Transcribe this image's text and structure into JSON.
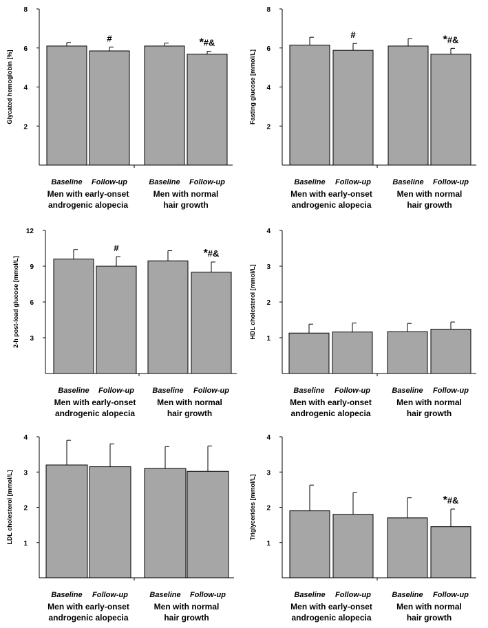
{
  "chart_data": [
    {
      "type": "bar",
      "ylabel": "Glycated hemoglobin [%]",
      "ylim": [
        0,
        8
      ],
      "yticks": [
        2,
        4,
        6,
        8
      ],
      "categories": [
        "Baseline",
        "Follow-up",
        "Baseline",
        "Follow-up"
      ],
      "groups": [
        "Men with early-onset|androgenic alopecia",
        "Men with normal|hair growth"
      ],
      "values": [
        6.1,
        5.85,
        6.1,
        5.68
      ],
      "errors": [
        0.18,
        0.2,
        0.15,
        0.15
      ],
      "annotations": [
        {
          "index": 1,
          "star": "",
          "mark": "#"
        },
        {
          "index": 3,
          "star": "*",
          "mark": "#&"
        }
      ]
    },
    {
      "type": "bar",
      "ylabel": "Fasting glucose [mmol/L]",
      "ylim": [
        0,
        8
      ],
      "yticks": [
        2,
        4,
        6,
        8
      ],
      "categories": [
        "Baseline",
        "Follow-up",
        "Baseline",
        "Follow-up"
      ],
      "groups": [
        "Men with early-onset|androgenic alopecia",
        "Men with normal|hair growth"
      ],
      "values": [
        6.15,
        5.88,
        6.1,
        5.68
      ],
      "errors": [
        0.4,
        0.35,
        0.38,
        0.3
      ],
      "annotations": [
        {
          "index": 1,
          "star": "",
          "mark": "#"
        },
        {
          "index": 3,
          "star": "*",
          "mark": "#&"
        }
      ]
    },
    {
      "type": "bar",
      "ylabel": "2-h post-load glucose [mmol/L]",
      "ylim": [
        0,
        12
      ],
      "yticks": [
        3,
        6,
        9,
        12
      ],
      "categories": [
        "Baseline",
        "Follow-up",
        "Baseline",
        "Follow-up"
      ],
      "groups": [
        "Men with early-onset|androgenic alopecia",
        "Men with normal|hair growth"
      ],
      "values": [
        9.6,
        9.0,
        9.45,
        8.5
      ],
      "errors": [
        0.8,
        0.8,
        0.85,
        0.85
      ],
      "annotations": [
        {
          "index": 1,
          "star": "",
          "mark": "#"
        },
        {
          "index": 3,
          "star": "*",
          "mark": "#&"
        }
      ]
    },
    {
      "type": "bar",
      "ylabel": "HDL cholesterol [mmol/L]",
      "ylim": [
        0,
        4
      ],
      "yticks": [
        1,
        2,
        3,
        4
      ],
      "categories": [
        "Baseline",
        "Follow-up",
        "Baseline",
        "Follow-up"
      ],
      "groups": [
        "Men with early-onset|androgenic alopecia",
        "Men with normal|hair growth"
      ],
      "values": [
        1.13,
        1.16,
        1.17,
        1.24
      ],
      "errors": [
        0.25,
        0.25,
        0.23,
        0.2
      ],
      "annotations": []
    },
    {
      "type": "bar",
      "ylabel": "LDL cholesterol [mmol/L]",
      "ylim": [
        0,
        4
      ],
      "yticks": [
        1,
        2,
        3,
        4
      ],
      "categories": [
        "Baseline",
        "Follow-up",
        "Baseline",
        "Follow-up"
      ],
      "groups": [
        "Men with early-onset|androgenic alopecia",
        "Men with normal|hair growth"
      ],
      "values": [
        3.2,
        3.15,
        3.1,
        3.02
      ],
      "errors": [
        0.7,
        0.65,
        0.62,
        0.72
      ],
      "annotations": []
    },
    {
      "type": "bar",
      "ylabel": "Triglycerides [mmol/L]",
      "ylim": [
        0,
        4
      ],
      "yticks": [
        1,
        2,
        3,
        4
      ],
      "categories": [
        "Baseline",
        "Follow-up",
        "Baseline",
        "Follow-up"
      ],
      "groups": [
        "Men with early-onset|androgenic alopecia",
        "Men with normal|hair growth"
      ],
      "values": [
        1.9,
        1.8,
        1.7,
        1.45
      ],
      "errors": [
        0.73,
        0.62,
        0.57,
        0.5
      ],
      "annotations": [
        {
          "index": 3,
          "star": "*",
          "mark": "#&"
        }
      ]
    }
  ]
}
